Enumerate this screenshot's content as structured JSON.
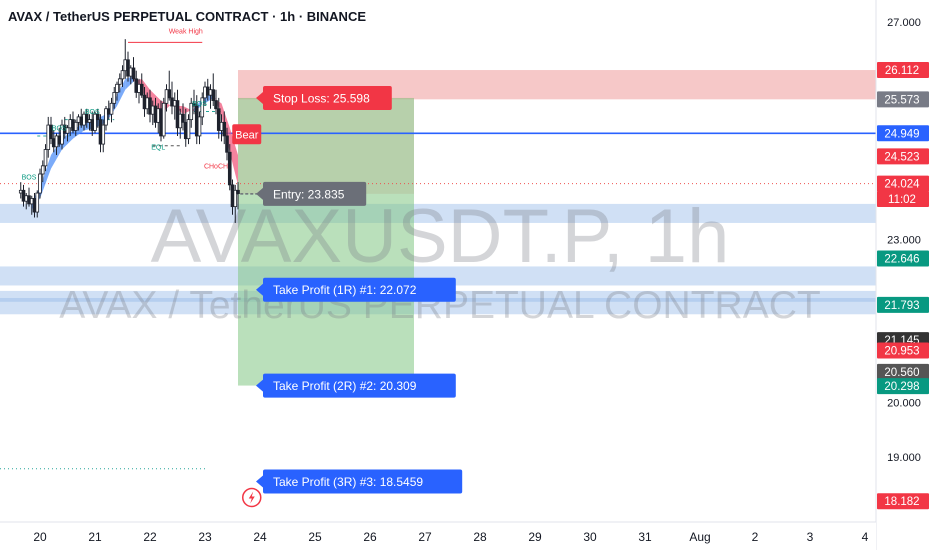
{
  "header": {
    "title": "AVAX / TetherUS PERPETUAL CONTRACT · 1h · BINANCE"
  },
  "watermark": {
    "symbol": "AVAXUSDT.P, 1h",
    "description": "AVAX / TetherUS PERPETUAL CONTRACT"
  },
  "colors": {
    "up": "#26a69a",
    "down": "#ef5350",
    "blue": "#2962ff",
    "profit_zone": "#81c784",
    "loss_zone": "#ef9a9a",
    "entry_gray": "#6b6f78",
    "bear_red": "#f23645",
    "zone_blue": "#90b4e8"
  },
  "chart_data": {
    "type": "candlestick",
    "title": "AVAX / TetherUS PERPETUAL CONTRACT · 1h · BINANCE",
    "symbol": "AVAXUSDT.P",
    "timeframe": "1h",
    "exchange": "BINANCE",
    "ylim": [
      17.8,
      27.4
    ],
    "x_ticks": [
      {
        "label": "20",
        "day": 20
      },
      {
        "label": "21",
        "day": 21
      },
      {
        "label": "22",
        "day": 22
      },
      {
        "label": "23",
        "day": 23
      },
      {
        "label": "24",
        "day": 24
      },
      {
        "label": "25",
        "day": 25
      },
      {
        "label": "26",
        "day": 26
      },
      {
        "label": "27",
        "day": 27
      },
      {
        "label": "28",
        "day": 28
      },
      {
        "label": "29",
        "day": 29
      },
      {
        "label": "30",
        "day": 30
      },
      {
        "label": "31",
        "day": 31
      },
      {
        "label": "Aug",
        "day": 32
      },
      {
        "label": "2",
        "day": 33
      },
      {
        "label": "3",
        "day": 34
      },
      {
        "label": "4",
        "day": 35
      }
    ],
    "y_ticks": [
      "27.000",
      "23.000",
      "20.000",
      "19.000"
    ],
    "price_labels": [
      {
        "text": "26.112",
        "value": 26.112,
        "color": "#f23645"
      },
      {
        "text": "25.573",
        "value": 25.573,
        "color": "#787b86"
      },
      {
        "text": "24.949",
        "value": 24.949,
        "color": "#2962ff"
      },
      {
        "text": "24.523",
        "value": 24.523,
        "color": "#f23645"
      },
      {
        "text": "24.024",
        "value": 24.024,
        "color": "#f23645"
      },
      {
        "text": "11:02",
        "value": 23.74,
        "color": "#f23645"
      },
      {
        "text": "22.646",
        "value": 22.646,
        "color": "#089981"
      },
      {
        "text": "21.793",
        "value": 21.793,
        "color": "#089981"
      },
      {
        "text": "21.145",
        "value": 21.145,
        "color": "#333333"
      },
      {
        "text": "20.953",
        "value": 20.953,
        "color": "#f23645"
      },
      {
        "text": "20.560",
        "value": 20.56,
        "color": "#555555"
      },
      {
        "text": "20.298",
        "value": 20.298,
        "color": "#089981"
      },
      {
        "text": "18.182",
        "value": 18.182,
        "color": "#f23645"
      }
    ],
    "trade": {
      "entry": {
        "label": "Entry: 23.835",
        "value": 23.835
      },
      "stop_loss": {
        "label": "Stop Loss: 25.598",
        "value": 25.598
      },
      "targets": [
        {
          "label": "Take Profit (1R) #1: 22.072",
          "value": 22.072
        },
        {
          "label": "Take Profit (2R) #2: 20.309",
          "value": 20.309
        },
        {
          "label": "Take Profit (3R) #3: 18.5459",
          "value": 18.5459
        }
      ],
      "loss_zone": [
        25.573,
        26.112
      ],
      "start_day": 23.6,
      "end_day": 26.8
    },
    "levels": [
      {
        "value": 24.949,
        "style": "solid",
        "color": "#2962ff"
      },
      {
        "value": 24.024,
        "style": "dotted",
        "color": "#ef5350"
      },
      {
        "value": 18.78,
        "style": "dotted",
        "color": "#26a69a"
      }
    ],
    "zones": [
      {
        "from": 23.3,
        "to": 23.65
      },
      {
        "from": 22.15,
        "to": 22.5
      },
      {
        "from": 21.85,
        "to": 22.05
      },
      {
        "from": 21.62,
        "to": 21.92
      }
    ],
    "annotations": [
      {
        "text": "Weak High",
        "day": 22.65,
        "value": 26.78,
        "color": "#f23645"
      },
      {
        "text": "BOS",
        "day": 19.8,
        "value": 24.1,
        "color": "#089981"
      },
      {
        "text": "BOS",
        "day": 20.35,
        "value": 25.0,
        "color": "#089981"
      },
      {
        "text": "BOS",
        "day": 20.95,
        "value": 25.3,
        "color": "#089981"
      },
      {
        "text": "BOS",
        "day": 22.9,
        "value": 25.45,
        "color": "#089981"
      },
      {
        "text": "EQL",
        "day": 22.15,
        "value": 24.65,
        "color": "#089981"
      },
      {
        "text": "CHoCH",
        "day": 23.2,
        "value": 24.3,
        "color": "#f23645"
      }
    ],
    "bear_label": "Bear",
    "candles": [
      {
        "t": 19.65,
        "o": 23.85,
        "h": 24.05,
        "l": 23.75,
        "c": 23.9
      },
      {
        "t": 19.7,
        "o": 23.9,
        "h": 24.0,
        "l": 23.6,
        "c": 23.7
      },
      {
        "t": 19.75,
        "o": 23.7,
        "h": 23.85,
        "l": 23.55,
        "c": 23.8
      },
      {
        "t": 19.8,
        "o": 23.8,
        "h": 23.95,
        "l": 23.6,
        "c": 23.65
      },
      {
        "t": 19.85,
        "o": 23.65,
        "h": 23.8,
        "l": 23.45,
        "c": 23.75
      },
      {
        "t": 19.9,
        "o": 23.75,
        "h": 23.85,
        "l": 23.4,
        "c": 23.5
      },
      {
        "t": 19.95,
        "o": 23.5,
        "h": 23.9,
        "l": 23.4,
        "c": 23.85
      },
      {
        "t": 20.0,
        "o": 23.85,
        "h": 24.3,
        "l": 23.75,
        "c": 24.2
      },
      {
        "t": 20.05,
        "o": 24.2,
        "h": 24.45,
        "l": 24.05,
        "c": 24.35
      },
      {
        "t": 20.1,
        "o": 24.35,
        "h": 24.75,
        "l": 24.25,
        "c": 24.65
      },
      {
        "t": 20.15,
        "o": 24.65,
        "h": 25.25,
        "l": 24.5,
        "c": 25.1
      },
      {
        "t": 20.2,
        "o": 25.1,
        "h": 25.25,
        "l": 24.75,
        "c": 24.85
      },
      {
        "t": 20.25,
        "o": 24.85,
        "h": 25.0,
        "l": 24.6,
        "c": 24.7
      },
      {
        "t": 20.3,
        "o": 24.7,
        "h": 24.95,
        "l": 24.55,
        "c": 24.9
      },
      {
        "t": 20.35,
        "o": 24.9,
        "h": 25.05,
        "l": 24.7,
        "c": 24.75
      },
      {
        "t": 20.4,
        "o": 24.75,
        "h": 25.2,
        "l": 24.65,
        "c": 25.1
      },
      {
        "t": 20.45,
        "o": 25.1,
        "h": 25.25,
        "l": 24.85,
        "c": 24.95
      },
      {
        "t": 20.5,
        "o": 24.95,
        "h": 25.1,
        "l": 24.8,
        "c": 25.05
      },
      {
        "t": 20.55,
        "o": 25.05,
        "h": 25.3,
        "l": 24.9,
        "c": 25.2
      },
      {
        "t": 20.6,
        "o": 25.2,
        "h": 25.35,
        "l": 24.95,
        "c": 25.0
      },
      {
        "t": 20.65,
        "o": 25.0,
        "h": 25.2,
        "l": 24.9,
        "c": 25.15
      },
      {
        "t": 20.7,
        "o": 25.15,
        "h": 25.3,
        "l": 25.0,
        "c": 25.25
      },
      {
        "t": 20.75,
        "o": 25.25,
        "h": 25.4,
        "l": 25.05,
        "c": 25.1
      },
      {
        "t": 20.8,
        "o": 25.1,
        "h": 25.35,
        "l": 25.0,
        "c": 25.3
      },
      {
        "t": 20.85,
        "o": 25.3,
        "h": 25.4,
        "l": 25.05,
        "c": 25.15
      },
      {
        "t": 20.9,
        "o": 25.15,
        "h": 25.3,
        "l": 25.0,
        "c": 25.2
      },
      {
        "t": 20.95,
        "o": 25.2,
        "h": 25.35,
        "l": 24.9,
        "c": 25.0
      },
      {
        "t": 21.0,
        "o": 25.0,
        "h": 25.35,
        "l": 24.95,
        "c": 25.3
      },
      {
        "t": 21.05,
        "o": 25.3,
        "h": 25.4,
        "l": 25.05,
        "c": 25.2
      },
      {
        "t": 21.1,
        "o": 25.2,
        "h": 25.3,
        "l": 24.6,
        "c": 24.75
      },
      {
        "t": 21.15,
        "o": 24.75,
        "h": 25.2,
        "l": 24.6,
        "c": 25.1
      },
      {
        "t": 21.2,
        "o": 25.1,
        "h": 25.45,
        "l": 25.0,
        "c": 25.4
      },
      {
        "t": 21.25,
        "o": 25.4,
        "h": 25.55,
        "l": 25.2,
        "c": 25.3
      },
      {
        "t": 21.3,
        "o": 25.3,
        "h": 25.6,
        "l": 25.15,
        "c": 25.5
      },
      {
        "t": 21.35,
        "o": 25.5,
        "h": 25.8,
        "l": 25.4,
        "c": 25.7
      },
      {
        "t": 21.4,
        "o": 25.7,
        "h": 25.9,
        "l": 25.55,
        "c": 25.85
      },
      {
        "t": 21.45,
        "o": 25.85,
        "h": 26.05,
        "l": 25.7,
        "c": 25.95
      },
      {
        "t": 21.5,
        "o": 25.95,
        "h": 26.2,
        "l": 25.8,
        "c": 26.1
      },
      {
        "t": 21.55,
        "o": 26.1,
        "h": 26.68,
        "l": 25.95,
        "c": 26.3
      },
      {
        "t": 21.6,
        "o": 26.3,
        "h": 26.45,
        "l": 25.9,
        "c": 26.0
      },
      {
        "t": 21.65,
        "o": 26.0,
        "h": 26.2,
        "l": 25.85,
        "c": 26.15
      },
      {
        "t": 21.7,
        "o": 26.15,
        "h": 26.35,
        "l": 25.9,
        "c": 25.95
      },
      {
        "t": 21.75,
        "o": 25.95,
        "h": 26.1,
        "l": 25.6,
        "c": 25.7
      },
      {
        "t": 21.8,
        "o": 25.7,
        "h": 25.95,
        "l": 25.5,
        "c": 25.85
      },
      {
        "t": 21.85,
        "o": 25.85,
        "h": 26.05,
        "l": 25.6,
        "c": 25.65
      },
      {
        "t": 21.9,
        "o": 25.65,
        "h": 25.8,
        "l": 25.25,
        "c": 25.4
      },
      {
        "t": 21.95,
        "o": 25.4,
        "h": 25.7,
        "l": 25.3,
        "c": 25.6
      },
      {
        "t": 22.0,
        "o": 25.6,
        "h": 25.75,
        "l": 25.15,
        "c": 25.3
      },
      {
        "t": 22.05,
        "o": 25.3,
        "h": 25.55,
        "l": 25.1,
        "c": 25.45
      },
      {
        "t": 22.1,
        "o": 25.45,
        "h": 25.6,
        "l": 25.05,
        "c": 25.15
      },
      {
        "t": 22.15,
        "o": 25.15,
        "h": 25.5,
        "l": 24.95,
        "c": 25.4
      },
      {
        "t": 22.2,
        "o": 25.4,
        "h": 25.55,
        "l": 24.8,
        "c": 24.9
      },
      {
        "t": 22.25,
        "o": 24.9,
        "h": 25.6,
        "l": 24.85,
        "c": 25.5
      },
      {
        "t": 22.3,
        "o": 25.5,
        "h": 25.85,
        "l": 25.35,
        "c": 25.75
      },
      {
        "t": 22.35,
        "o": 25.75,
        "h": 26.1,
        "l": 25.55,
        "c": 25.6
      },
      {
        "t": 22.4,
        "o": 25.6,
        "h": 25.9,
        "l": 25.3,
        "c": 25.45
      },
      {
        "t": 22.45,
        "o": 25.45,
        "h": 25.7,
        "l": 25.2,
        "c": 25.55
      },
      {
        "t": 22.5,
        "o": 25.55,
        "h": 25.75,
        "l": 24.9,
        "c": 25.05
      },
      {
        "t": 22.55,
        "o": 25.05,
        "h": 25.4,
        "l": 24.85,
        "c": 25.3
      },
      {
        "t": 22.6,
        "o": 25.3,
        "h": 25.5,
        "l": 25.0,
        "c": 25.15
      },
      {
        "t": 22.65,
        "o": 25.15,
        "h": 25.4,
        "l": 24.7,
        "c": 24.85
      },
      {
        "t": 22.7,
        "o": 24.85,
        "h": 25.3,
        "l": 24.75,
        "c": 25.2
      },
      {
        "t": 22.75,
        "o": 25.2,
        "h": 25.6,
        "l": 25.05,
        "c": 25.5
      },
      {
        "t": 22.8,
        "o": 25.5,
        "h": 25.75,
        "l": 25.3,
        "c": 25.45
      },
      {
        "t": 22.85,
        "o": 25.45,
        "h": 25.65,
        "l": 24.75,
        "c": 24.9
      },
      {
        "t": 22.9,
        "o": 24.9,
        "h": 25.35,
        "l": 24.75,
        "c": 25.25
      },
      {
        "t": 22.95,
        "o": 25.25,
        "h": 25.7,
        "l": 25.1,
        "c": 25.6
      },
      {
        "t": 23.0,
        "o": 25.6,
        "h": 25.9,
        "l": 25.45,
        "c": 25.8
      },
      {
        "t": 23.05,
        "o": 25.8,
        "h": 25.95,
        "l": 25.55,
        "c": 25.65
      },
      {
        "t": 23.1,
        "o": 25.65,
        "h": 25.85,
        "l": 25.4,
        "c": 25.75
      },
      {
        "t": 23.15,
        "o": 25.75,
        "h": 26.05,
        "l": 25.45,
        "c": 25.55
      },
      {
        "t": 23.2,
        "o": 25.55,
        "h": 25.75,
        "l": 25.3,
        "c": 25.4
      },
      {
        "t": 23.25,
        "o": 25.4,
        "h": 25.6,
        "l": 24.85,
        "c": 25.0
      },
      {
        "t": 23.3,
        "o": 25.0,
        "h": 25.3,
        "l": 24.8,
        "c": 25.15
      },
      {
        "t": 23.35,
        "o": 25.15,
        "h": 25.35,
        "l": 24.75,
        "c": 24.9
      },
      {
        "t": 23.4,
        "o": 24.9,
        "h": 25.05,
        "l": 24.45,
        "c": 24.6
      },
      {
        "t": 23.45,
        "o": 24.6,
        "h": 24.75,
        "l": 23.9,
        "c": 24.0
      },
      {
        "t": 23.5,
        "o": 24.0,
        "h": 24.1,
        "l": 23.45,
        "c": 23.6
      },
      {
        "t": 23.55,
        "o": 23.6,
        "h": 24.0,
        "l": 23.3,
        "c": 23.9
      },
      {
        "t": 23.6,
        "o": 23.9,
        "h": 24.05,
        "l": 23.55,
        "c": 23.84
      }
    ],
    "ribbon": [
      {
        "t": 19.85,
        "v1": 23.7,
        "v2": 23.55
      },
      {
        "t": 20.0,
        "v1": 23.95,
        "v2": 23.75
      },
      {
        "t": 20.2,
        "v1": 24.55,
        "v2": 24.3
      },
      {
        "t": 20.4,
        "v1": 24.85,
        "v2": 24.65
      },
      {
        "t": 20.6,
        "v1": 25.0,
        "v2": 24.85
      },
      {
        "t": 20.8,
        "v1": 25.15,
        "v2": 25.0
      },
      {
        "t": 21.0,
        "v1": 25.2,
        "v2": 25.05
      },
      {
        "t": 21.2,
        "v1": 25.3,
        "v2": 25.15
      },
      {
        "t": 21.4,
        "v1": 25.65,
        "v2": 25.45
      },
      {
        "t": 21.55,
        "v1": 25.95,
        "v2": 25.75
      },
      {
        "t": 21.7,
        "v1": 26.0,
        "v2": 25.9
      },
      {
        "t": 21.85,
        "v1": 25.75,
        "v2": 25.95
      },
      {
        "t": 22.0,
        "v1": 25.45,
        "v2": 25.75
      },
      {
        "t": 22.2,
        "v1": 25.3,
        "v2": 25.55
      },
      {
        "t": 22.4,
        "v1": 25.5,
        "v2": 25.45
      },
      {
        "t": 22.6,
        "v1": 25.3,
        "v2": 25.45
      },
      {
        "t": 22.8,
        "v1": 25.4,
        "v2": 25.35
      },
      {
        "t": 23.0,
        "v1": 25.65,
        "v2": 25.5
      },
      {
        "t": 23.15,
        "v1": 25.7,
        "v2": 25.6
      },
      {
        "t": 23.3,
        "v1": 25.25,
        "v2": 25.5
      },
      {
        "t": 23.45,
        "v1": 24.6,
        "v2": 25.05
      },
      {
        "t": 23.6,
        "v1": 24.0,
        "v2": 24.55
      }
    ]
  }
}
